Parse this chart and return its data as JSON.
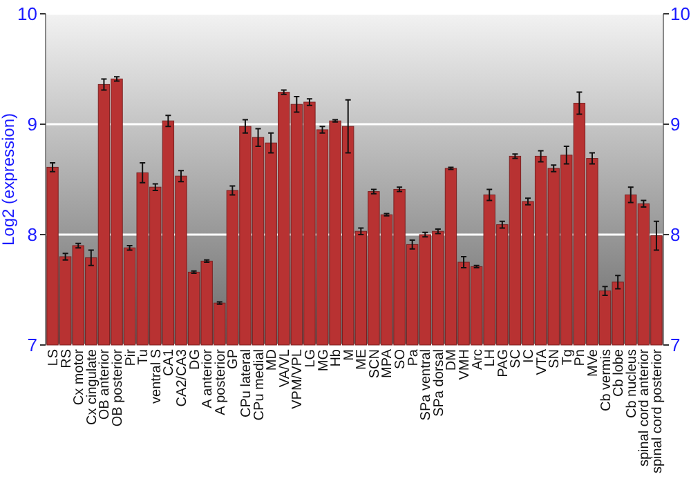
{
  "chart_data": {
    "type": "bar",
    "ylabel": "Log2 (expression)",
    "categories": [
      "LS",
      "RS",
      "Cx motor",
      "Cx cingulate",
      "OB anterior",
      "OB posterior",
      "Pir",
      "Tu",
      "ventral S",
      "CA1",
      "CA2/CA3",
      "DG",
      "A anterior",
      "A posterior",
      "GP",
      "CPu lateral",
      "CPu medial",
      "MD",
      "VA/VL",
      "VPM/VPL",
      "LG",
      "MG",
      "Hb",
      "M",
      "ME",
      "SCN",
      "MPA",
      "SO",
      "Pa",
      "SPa ventral",
      "SPa dorsal",
      "DM",
      "VMH",
      "Arc",
      "LH",
      "PAG",
      "SC",
      "IC",
      "VTA",
      "SN",
      "Tg",
      "Pn",
      "MVe",
      "Cb vermis",
      "Cb lobe",
      "Cb nucleus",
      "spinal cord anterior",
      "spinal cord posterior"
    ],
    "values": [
      8.61,
      7.8,
      7.9,
      7.79,
      9.36,
      9.41,
      7.88,
      8.56,
      8.43,
      9.03,
      8.53,
      7.66,
      7.76,
      7.38,
      8.4,
      8.98,
      8.88,
      8.83,
      9.29,
      9.18,
      9.2,
      8.95,
      9.03,
      8.98,
      8.03,
      8.39,
      8.18,
      8.41,
      7.91,
      8.0,
      8.03,
      8.6,
      7.75,
      7.71,
      8.36,
      8.09,
      8.71,
      8.3,
      8.71,
      8.6,
      8.72,
      9.19,
      8.69,
      7.49,
      7.57,
      8.36,
      8.28,
      7.99
    ],
    "errors": [
      0.04,
      0.03,
      0.02,
      0.07,
      0.05,
      0.02,
      0.02,
      0.09,
      0.03,
      0.05,
      0.05,
      0.01,
      0.01,
      0.01,
      0.04,
      0.06,
      0.08,
      0.09,
      0.02,
      0.07,
      0.03,
      0.03,
      0.01,
      0.24,
      0.03,
      0.02,
      0.01,
      0.02,
      0.04,
      0.02,
      0.02,
      0.01,
      0.05,
      0.01,
      0.05,
      0.03,
      0.02,
      0.03,
      0.05,
      0.03,
      0.08,
      0.1,
      0.05,
      0.04,
      0.06,
      0.07,
      0.03,
      0.13
    ],
    "color": "#b83232",
    "ylim": [
      7,
      10
    ],
    "yticks": [
      7,
      8,
      9,
      10
    ],
    "y2lim": [
      7,
      10
    ],
    "y2ticks": [
      7,
      8,
      9,
      10
    ],
    "grid": "y"
  }
}
